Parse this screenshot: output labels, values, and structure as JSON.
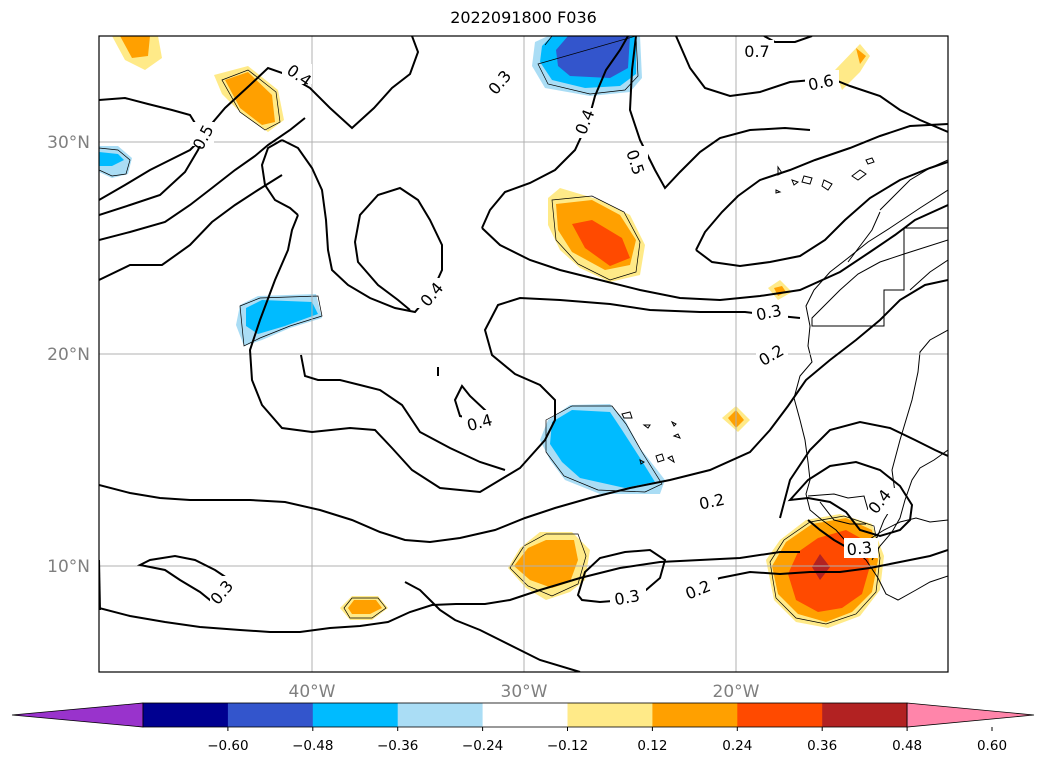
{
  "title": "2022091800 F036",
  "map": {
    "lat_labels": [
      "30°N",
      "20°N",
      "10°N"
    ],
    "lon_labels": [
      "40°W",
      "30°W",
      "20°W"
    ],
    "grid": true,
    "contour_labels": [
      "0.4",
      "0.5",
      "0.3",
      "0.4",
      "0.5",
      "0.7",
      "0.6",
      "0.4",
      "0.3",
      "0.2",
      "0.4",
      "0.2",
      "0.3",
      "0.2",
      "0.4",
      "0.3",
      "0.3"
    ]
  },
  "colorbar": {
    "ticks": [
      "−0.60",
      "−0.48",
      "−0.36",
      "−0.24",
      "−0.12",
      "0.12",
      "0.24",
      "0.36",
      "0.48",
      "0.60"
    ],
    "colors": [
      "#9933cc",
      "#000090",
      "#3355cc",
      "#00bbff",
      "#aaddf5",
      "#ffffff",
      "#ffea88",
      "#ffa000",
      "#ff4a00",
      "#b22222",
      "#ff85aa"
    ],
    "extend": "both"
  }
}
